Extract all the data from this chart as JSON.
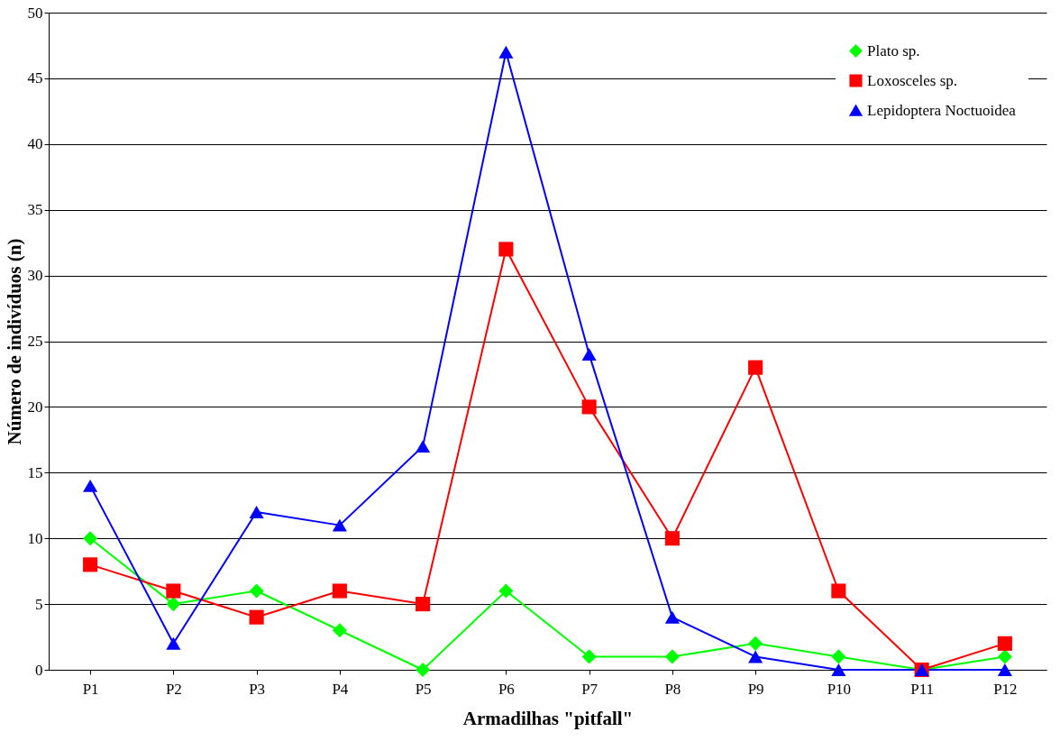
{
  "chart_data": {
    "type": "line",
    "xlabel": "Armadilhas \"pitfall\"",
    "ylabel": "Número de indivíduos (n)",
    "categories": [
      "P1",
      "P2",
      "P3",
      "P4",
      "P5",
      "P6",
      "P7",
      "P8",
      "P9",
      "P10",
      "P11",
      "P12"
    ],
    "series": [
      {
        "name": "Plato sp.",
        "color": "#00ff00",
        "marker": "diamond",
        "values": [
          10,
          5,
          6,
          3,
          0,
          6,
          1,
          1,
          2,
          1,
          0,
          1
        ]
      },
      {
        "name": "Loxosceles sp.",
        "color": "#ff0000",
        "marker": "square",
        "values": [
          8,
          6,
          4,
          6,
          5,
          32,
          20,
          10,
          23,
          6,
          0,
          2
        ]
      },
      {
        "name": "Lepidoptera Noctuoidea",
        "color": "#0000ff",
        "marker": "triangle",
        "values": [
          14,
          2,
          12,
          11,
          17,
          47,
          24,
          4,
          1,
          0,
          0,
          0
        ]
      }
    ],
    "ylim": [
      0,
      50
    ],
    "yticks": [
      0,
      5,
      10,
      15,
      20,
      25,
      30,
      35,
      40,
      45,
      50
    ],
    "grid": "y",
    "legend": "top right",
    "line_style": "solid"
  }
}
